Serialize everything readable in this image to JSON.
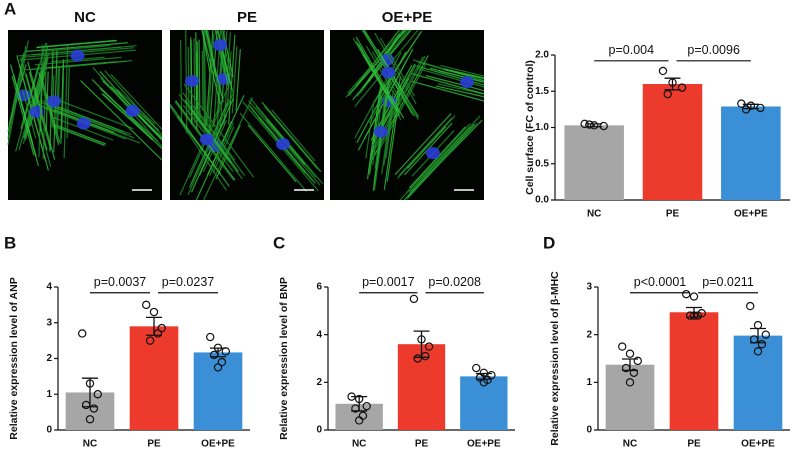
{
  "panel_labels": [
    "A",
    "B",
    "C",
    "D"
  ],
  "image_labels": [
    "NC",
    "PE",
    "OE+PE"
  ],
  "chart_data": [
    {
      "type": "bar",
      "ylabel": "Cell surface  (FC of control)",
      "categories": [
        "NC",
        "PE",
        "OE+PE"
      ],
      "colors": [
        "#a6a6a6",
        "#ec3a2c",
        "#3a8fd6"
      ],
      "values": [
        1.03,
        1.6,
        1.29
      ],
      "errors": [
        0.02,
        0.08,
        0.03
      ],
      "points": [
        [
          1.05,
          1.03,
          1.02,
          1.04
        ],
        [
          1.78,
          1.62,
          1.55,
          1.46
        ],
        [
          1.33,
          1.3,
          1.27,
          1.25
        ]
      ],
      "ylim": [
        0,
        2
      ],
      "yticks": [
        {
          "value": 0,
          "label": "0.0"
        },
        0.5,
        {
          "value": 1,
          "label": "1.0"
        },
        1.5,
        {
          "value": 2,
          "label": "2.0"
        }
      ],
      "annotations": [
        "p=0.004",
        "p=0.0096"
      ]
    },
    {
      "type": "bar",
      "ylabel": "Relative expression level of ANP",
      "categories": [
        "NC",
        "PE",
        "OE+PE"
      ],
      "colors": [
        "#a6a6a6",
        "#ec3a2c",
        "#3a8fd6"
      ],
      "values": [
        1.05,
        2.9,
        2.17
      ],
      "errors": [
        0.4,
        0.25,
        0.12
      ],
      "points": [
        [
          2.7,
          1.3,
          1.0,
          0.7,
          0.6,
          0.3
        ],
        [
          3.5,
          3.3,
          2.85,
          2.5,
          2.7
        ],
        [
          2.6,
          2.3,
          2.2,
          2.1,
          1.9,
          1.75
        ]
      ],
      "ylim": [
        0,
        4
      ],
      "yticks": [
        0,
        1,
        2,
        3,
        4
      ],
      "annotations": [
        "p=0.0037",
        "p=0.0237"
      ]
    },
    {
      "type": "bar",
      "ylabel": "Relative expression level of BNP",
      "categories": [
        "NC",
        "PE",
        "OE+PE"
      ],
      "colors": [
        "#a6a6a6",
        "#ec3a2c",
        "#3a8fd6"
      ],
      "values": [
        1.1,
        3.6,
        2.25
      ],
      "errors": [
        0.3,
        0.55,
        0.12
      ],
      "points": [
        [
          1.4,
          1.3,
          1.0,
          0.9,
          0.6,
          0.4
        ],
        [
          5.5,
          3.8,
          3.5,
          3.0,
          3.1
        ],
        [
          2.6,
          2.4,
          2.3,
          2.2,
          2.1,
          2.0
        ]
      ],
      "ylim": [
        0,
        6
      ],
      "yticks": [
        0,
        2,
        4,
        6
      ],
      "annotations": [
        "p=0.0017",
        "p=0.0208"
      ]
    },
    {
      "type": "bar",
      "ylabel": "Relative expression level of β-MHC",
      "categories": [
        "NC",
        "PE",
        "OE+PE"
      ],
      "colors": [
        "#a6a6a6",
        "#ec3a2c",
        "#3a8fd6"
      ],
      "values": [
        1.37,
        2.47,
        1.98
      ],
      "errors": [
        0.12,
        0.1,
        0.15
      ],
      "points": [
        [
          1.75,
          1.6,
          1.45,
          1.3,
          1.2,
          1.0
        ],
        [
          2.85,
          2.8,
          2.45,
          2.4,
          2.4,
          2.4
        ],
        [
          2.6,
          2.2,
          2.0,
          1.9,
          1.8,
          1.65
        ]
      ],
      "ylim": [
        0,
        3
      ],
      "yticks": [
        0,
        1,
        2,
        3
      ],
      "annotations": [
        "p<0.0001",
        "p=0.0211"
      ]
    }
  ]
}
